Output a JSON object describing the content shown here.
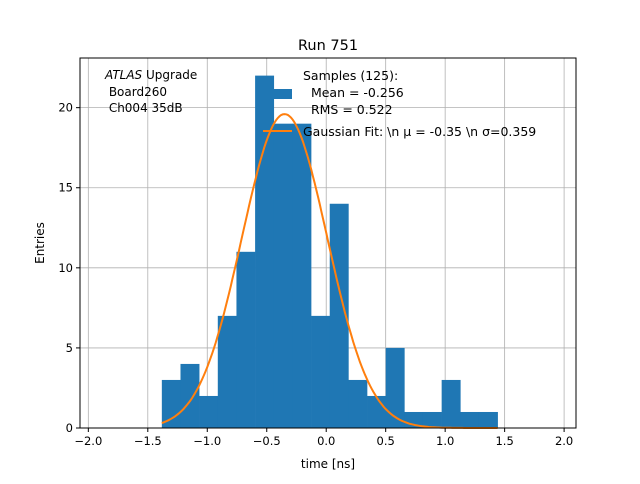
{
  "chart_data": {
    "type": "bar",
    "title": "Run 751",
    "xlabel": "time [ns]",
    "ylabel": "Entries",
    "xlim": [
      -2.07,
      2.1
    ],
    "ylim": [
      0,
      23.1
    ],
    "grid": true,
    "xticks": [
      "−2.0",
      "−1.5",
      "−1.0",
      "−0.5",
      "0.0",
      "0.5",
      "1.0",
      "1.5",
      "2.0"
    ],
    "xtick_values": [
      -2.0,
      -1.5,
      -1.0,
      -0.5,
      0.0,
      0.5,
      1.0,
      1.5,
      2.0
    ],
    "yticks": [
      "0",
      "5",
      "10",
      "15",
      "20"
    ],
    "ytick_values": [
      0,
      5,
      10,
      15,
      20
    ],
    "bin_edges_range": [
      -1.382,
      1.441
    ],
    "values": [
      3,
      4,
      2,
      7,
      11,
      22,
      19,
      19,
      7,
      14,
      3,
      2,
      5,
      1,
      1,
      3,
      1,
      1
    ],
    "fit": {
      "mu": -0.35,
      "sigma": 0.359,
      "amplitude": 19.6
    },
    "annotation": {
      "italic": "ATLAS",
      "rest": " Upgrade",
      "line2": " Board260",
      "line3": " Ch004 35dB"
    },
    "legend": {
      "placement": "top-right",
      "entries": [
        "Samples (125):",
        "  Mean = -0.256",
        "  RMS = 0.522",
        "Gaussian Fit: \\n μ = -0.35 \\n σ=0.359"
      ]
    },
    "colors": {
      "bars": "#1f77b4",
      "fit": "#ff7f0e",
      "grid": "#b0b0b0"
    }
  }
}
